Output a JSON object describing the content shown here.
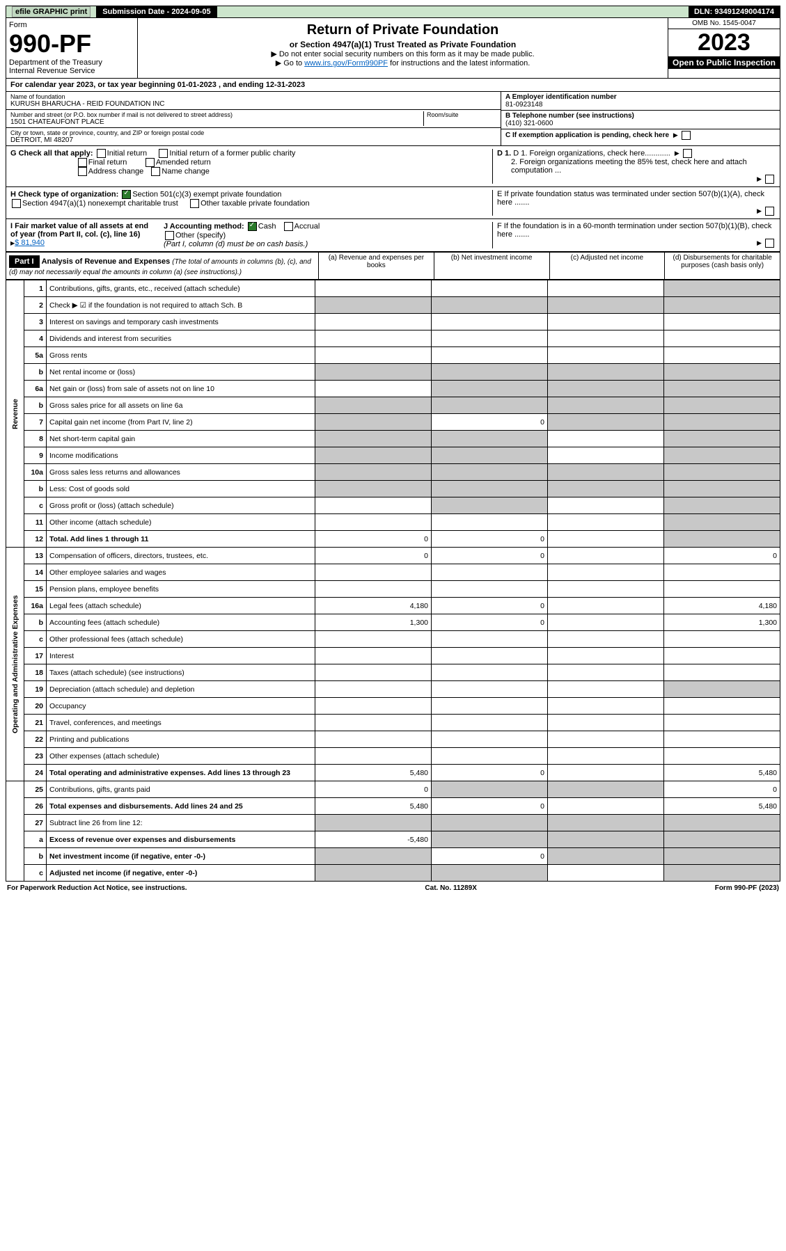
{
  "topbar": {
    "efile": "efile GRAPHIC print",
    "submission": "Submission Date - 2024-09-05",
    "dln": "DLN: 93491249004174"
  },
  "header": {
    "form_label": "Form",
    "form_no": "990-PF",
    "dept": "Department of the Treasury",
    "irs": "Internal Revenue Service",
    "title": "Return of Private Foundation",
    "subtitle": "or Section 4947(a)(1) Trust Treated as Private Foundation",
    "inst1": "▶ Do not enter social security numbers on this form as it may be made public.",
    "inst2_pre": "▶ Go to ",
    "inst2_link": "www.irs.gov/Form990PF",
    "inst2_post": " for instructions and the latest information.",
    "omb": "OMB No. 1545-0047",
    "year": "2023",
    "inspection": "Open to Public Inspection"
  },
  "calyear": "For calendar year 2023, or tax year beginning 01-01-2023                          , and ending 12-31-2023",
  "foundation": {
    "name_label": "Name of foundation",
    "name": "KURUSH BHARUCHA - REID FOUNDATION INC",
    "addr_label": "Number and street (or P.O. box number if mail is not delivered to street address)",
    "addr": "1501 CHATEAUFONT PLACE",
    "room_label": "Room/suite",
    "city_label": "City or town, state or province, country, and ZIP or foreign postal code",
    "city": "DETROIT, MI  48207",
    "ein_label": "A Employer identification number",
    "ein": "81-0923148",
    "phone_label": "B Telephone number (see instructions)",
    "phone": "(410) 321-0600",
    "c_label": "C If exemption application is pending, check here",
    "d1": "D 1. Foreign organizations, check here............",
    "d2": "2. Foreign organizations meeting the 85% test, check here and attach computation ...",
    "e_label": "E  If private foundation status was terminated under section 507(b)(1)(A), check here .......",
    "f_label": "F  If the foundation is in a 60-month termination under section 507(b)(1)(B), check here .......",
    "g_label": "G Check all that apply:",
    "g_initial": "Initial return",
    "g_initial_former": "Initial return of a former public charity",
    "g_final": "Final return",
    "g_amended": "Amended return",
    "g_address": "Address change",
    "g_name": "Name change",
    "h_label": "H Check type of organization:",
    "h_501c3": "Section 501(c)(3) exempt private foundation",
    "h_4947": "Section 4947(a)(1) nonexempt charitable trust",
    "h_other": "Other taxable private foundation",
    "i_label": "I Fair market value of all assets at end of year (from Part II, col. (c), line 16)",
    "i_value": "$  81,940",
    "j_label": "J Accounting method:",
    "j_cash": "Cash",
    "j_accrual": "Accrual",
    "j_other": "Other (specify)",
    "j_note": "(Part I, column (d) must be on cash basis.)"
  },
  "part1": {
    "label": "Part I",
    "title": "Analysis of Revenue and Expenses",
    "note": "(The total of amounts in columns (b), (c), and (d) may not necessarily equal the amounts in column (a) (see instructions).)",
    "col_a": "(a)   Revenue and expenses per books",
    "col_b": "(b)   Net investment income",
    "col_c": "(c)   Adjusted net income",
    "col_d": "(d)   Disbursements for charitable purposes (cash basis only)"
  },
  "sections": {
    "revenue": "Revenue",
    "expenses": "Operating and Administrative Expenses"
  },
  "rows": [
    {
      "n": "1",
      "d": "Contributions, gifts, grants, etc., received (attach schedule)",
      "a": "",
      "b": "",
      "c": "",
      "ds": "d"
    },
    {
      "n": "2",
      "d": "Check ▶ ☑ if the foundation is not required to attach Sch. B",
      "type": "note"
    },
    {
      "n": "3",
      "d": "Interest on savings and temporary cash investments",
      "a": "",
      "b": "",
      "c": "",
      "ds": ""
    },
    {
      "n": "4",
      "d": "Dividends and interest from securities",
      "a": "",
      "b": "",
      "c": "",
      "ds": ""
    },
    {
      "n": "5a",
      "d": "Gross rents",
      "a": "",
      "b": "",
      "c": "",
      "ds": ""
    },
    {
      "n": "b",
      "d": "Net rental income or (loss)",
      "type": "inline"
    },
    {
      "n": "6a",
      "d": "Net gain or (loss) from sale of assets not on line 10",
      "a": "",
      "b": "s",
      "c": "s",
      "ds": "s"
    },
    {
      "n": "b",
      "d": "Gross sales price for all assets on line 6a",
      "type": "inline"
    },
    {
      "n": "7",
      "d": "Capital gain net income (from Part IV, line 2)",
      "a": "s",
      "b": "0",
      "c": "s",
      "ds": "s"
    },
    {
      "n": "8",
      "d": "Net short-term capital gain",
      "a": "s",
      "b": "s",
      "c": "",
      "ds": "s"
    },
    {
      "n": "9",
      "d": "Income modifications",
      "a": "s",
      "b": "s",
      "c": "",
      "ds": "s"
    },
    {
      "n": "10a",
      "d": "Gross sales less returns and allowances",
      "type": "inline"
    },
    {
      "n": "b",
      "d": "Less: Cost of goods sold",
      "type": "inline"
    },
    {
      "n": "c",
      "d": "Gross profit or (loss) (attach schedule)",
      "a": "",
      "b": "s",
      "c": "",
      "ds": "s"
    },
    {
      "n": "11",
      "d": "Other income (attach schedule)",
      "a": "",
      "b": "",
      "c": "",
      "ds": "s"
    },
    {
      "n": "12",
      "d": "Total. Add lines 1 through 11",
      "bold": true,
      "a": "0",
      "b": "0",
      "c": "",
      "ds": "s"
    },
    {
      "n": "13",
      "d": "Compensation of officers, directors, trustees, etc.",
      "a": "0",
      "b": "0",
      "c": "",
      "dv": "0"
    },
    {
      "n": "14",
      "d": "Other employee salaries and wages",
      "a": "",
      "b": "",
      "c": "",
      "dv": ""
    },
    {
      "n": "15",
      "d": "Pension plans, employee benefits",
      "a": "",
      "b": "",
      "c": "",
      "dv": ""
    },
    {
      "n": "16a",
      "d": "Legal fees (attach schedule)",
      "a": "4,180",
      "b": "0",
      "c": "",
      "dv": "4,180"
    },
    {
      "n": "b",
      "d": "Accounting fees (attach schedule)",
      "a": "1,300",
      "b": "0",
      "c": "",
      "dv": "1,300"
    },
    {
      "n": "c",
      "d": "Other professional fees (attach schedule)",
      "a": "",
      "b": "",
      "c": "",
      "dv": ""
    },
    {
      "n": "17",
      "d": "Interest",
      "a": "",
      "b": "",
      "c": "",
      "dv": ""
    },
    {
      "n": "18",
      "d": "Taxes (attach schedule) (see instructions)",
      "a": "",
      "b": "",
      "c": "",
      "dv": ""
    },
    {
      "n": "19",
      "d": "Depreciation (attach schedule) and depletion",
      "a": "",
      "b": "",
      "c": "",
      "ds": "s"
    },
    {
      "n": "20",
      "d": "Occupancy",
      "a": "",
      "b": "",
      "c": "",
      "dv": ""
    },
    {
      "n": "21",
      "d": "Travel, conferences, and meetings",
      "a": "",
      "b": "",
      "c": "",
      "dv": ""
    },
    {
      "n": "22",
      "d": "Printing and publications",
      "a": "",
      "b": "",
      "c": "",
      "dv": ""
    },
    {
      "n": "23",
      "d": "Other expenses (attach schedule)",
      "a": "",
      "b": "",
      "c": "",
      "dv": ""
    },
    {
      "n": "24",
      "d": "Total operating and administrative expenses. Add lines 13 through 23",
      "bold": true,
      "a": "5,480",
      "b": "0",
      "c": "",
      "dv": "5,480"
    },
    {
      "n": "25",
      "d": "Contributions, gifts, grants paid",
      "a": "0",
      "b": "s",
      "c": "s",
      "dv": "0"
    },
    {
      "n": "26",
      "d": "Total expenses and disbursements. Add lines 24 and 25",
      "bold": true,
      "a": "5,480",
      "b": "0",
      "c": "",
      "dv": "5,480"
    },
    {
      "n": "27",
      "d": "Subtract line 26 from line 12:",
      "type": "header27"
    },
    {
      "n": "a",
      "d": "Excess of revenue over expenses and disbursements",
      "bold": true,
      "a": "-5,480",
      "b": "s",
      "c": "s",
      "ds": "s"
    },
    {
      "n": "b",
      "d": "Net investment income (if negative, enter -0-)",
      "bold": true,
      "a": "s",
      "b": "0",
      "c": "s",
      "ds": "s"
    },
    {
      "n": "c",
      "d": "Adjusted net income (if negative, enter -0-)",
      "bold": true,
      "a": "s",
      "b": "s",
      "c": "",
      "ds": "s"
    }
  ],
  "footer": {
    "left": "For Paperwork Reduction Act Notice, see instructions.",
    "center": "Cat. No. 11289X",
    "right": "Form 990-PF (2023)"
  }
}
